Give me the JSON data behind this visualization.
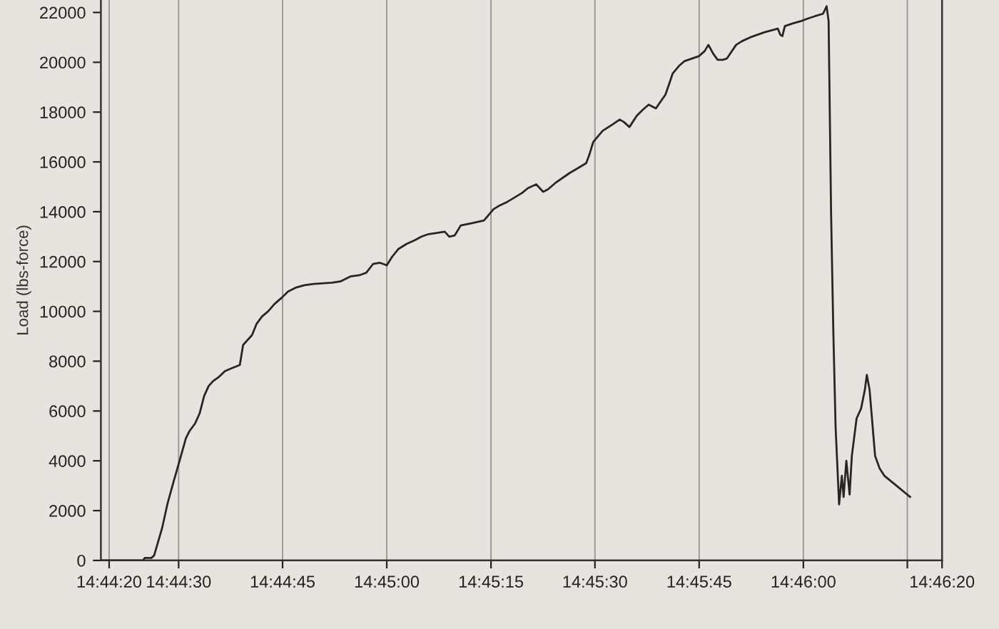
{
  "chart_data": {
    "type": "line",
    "ylabel": "Load (lbs-force)",
    "x": [
      14.73856,
      14.74025,
      14.74031,
      14.74058,
      14.74069,
      14.74101,
      14.74123,
      14.74145,
      14.74168,
      14.74196,
      14.74211,
      14.74233,
      14.74251,
      14.74269,
      14.74287,
      14.74305,
      14.74326,
      14.74352,
      14.74375,
      14.74412,
      14.74425,
      14.74461,
      14.74479,
      14.74501,
      14.74525,
      14.74551,
      14.7458,
      14.74605,
      14.74635,
      14.74671,
      14.74708,
      14.74781,
      14.74814,
      14.74854,
      14.7489,
      14.74918,
      14.74945,
      14.74973,
      14.75,
      14.75022,
      14.75046,
      14.75078,
      14.75111,
      14.75139,
      14.75167,
      14.752,
      14.75232,
      14.7525,
      14.75272,
      14.75296,
      14.75345,
      14.75389,
      14.75427,
      14.75451,
      14.75483,
      14.75508,
      14.75541,
      14.75565,
      14.75598,
      14.75626,
      14.75645,
      14.75674,
      14.75731,
      14.75765,
      14.75798,
      14.75811,
      14.75826,
      14.75864,
      14.75903,
      14.75932,
      14.75949,
      14.75971,
      14.76,
      14.76025,
      14.76048,
      14.76077,
      14.76094,
      14.76115,
      14.76129,
      14.76144,
      14.76169,
      14.76192,
      14.7625,
      14.76272,
      14.76287,
      14.76306,
      14.76324,
      14.76345,
      14.76361,
      14.76398,
      14.76422,
      14.76454,
      14.7651,
      14.76565,
      14.76575,
      14.76583,
      14.76593,
      14.76622,
      14.76657,
      14.76683,
      14.76713,
      14.76746,
      14.7676,
      14.76768,
      14.76778,
      14.76787,
      14.76796,
      14.7681,
      14.76821,
      14.76828,
      14.76839,
      14.76852,
      14.76861,
      14.7688,
      14.76898,
      14.76913,
      14.76921,
      14.76932,
      14.76954,
      14.76972,
      14.76991,
      14.77046,
      14.77094
    ],
    "series": [
      {
        "color": "#262626",
        "values": [
          0,
          0,
          100,
          100,
          200,
          1300,
          2300,
          3100,
          3900,
          4900,
          5200,
          5500,
          5900,
          6600,
          7000,
          7200,
          7350,
          7600,
          7700,
          7850,
          8650,
          9050,
          9500,
          9800,
          10000,
          10300,
          10550,
          10800,
          10950,
          11050,
          11100,
          11150,
          11200,
          11400,
          11450,
          11550,
          11900,
          11950,
          11850,
          12200,
          12500,
          12700,
          12850,
          13000,
          13100,
          13150,
          13200,
          13000,
          13050,
          13450,
          13550,
          13650,
          14100,
          14250,
          14400,
          14550,
          14750,
          14950,
          15100,
          14800,
          14900,
          15150,
          15550,
          15750,
          15950,
          16300,
          16800,
          17250,
          17500,
          17700,
          17600,
          17400,
          17850,
          18100,
          18300,
          18150,
          18400,
          18700,
          19100,
          19550,
          19850,
          20050,
          20250,
          20450,
          20700,
          20350,
          20100,
          20100,
          20150,
          20700,
          20850,
          21000,
          21200,
          21350,
          21100,
          21050,
          21450,
          21550,
          21650,
          21750,
          21850,
          21950,
          22250,
          21650,
          13900,
          9150,
          5350,
          2250,
          3400,
          2550,
          4000,
          2650,
          4200,
          5700,
          6100,
          6850,
          7450,
          6850,
          4200,
          3700,
          3400,
          2950,
          2550
        ]
      }
    ],
    "xlim": [
      14.73856,
      14.77222
    ],
    "xticks": [
      {
        "value": 14.73889,
        "label": "14:44:20"
      },
      {
        "value": 14.74167,
        "label": "14:44:30"
      },
      {
        "value": 14.74583,
        "label": "14:44:45"
      },
      {
        "value": 14.75,
        "label": "14:45:00"
      },
      {
        "value": 14.75417,
        "label": "14:45:15"
      },
      {
        "value": 14.75833,
        "label": "14:45:30"
      },
      {
        "value": 14.7625,
        "label": "14:45:45"
      },
      {
        "value": 14.76667,
        "label": "14:46:00"
      },
      {
        "value": 14.77083,
        "label": null
      },
      {
        "value": 14.77222,
        "label": "14:46:20"
      }
    ],
    "ylim": [
      0,
      22500
    ],
    "yticks": [
      0,
      2000,
      4000,
      6000,
      8000,
      10000,
      12000,
      14000,
      16000,
      18000,
      20000,
      22000
    ],
    "grid": "x",
    "line_style": "solid"
  }
}
